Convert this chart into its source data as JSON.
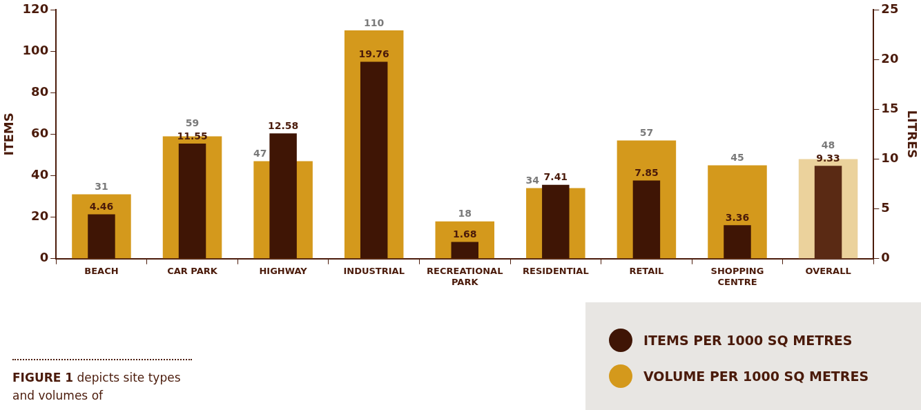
{
  "chart_data": {
    "type": "bar",
    "categories": [
      "BEACH",
      "CAR PARK",
      "HIGHWAY",
      "INDUSTRIAL",
      "RECREATIONAL PARK",
      "RESIDENTIAL",
      "RETAIL",
      "SHOPPING CENTRE",
      "OVERALL"
    ],
    "ylabel": "ITEMS",
    "y2label": "LITRES",
    "ylim": [
      0,
      120
    ],
    "yticks": [
      0,
      20,
      40,
      60,
      80,
      100,
      120
    ],
    "y2lim": [
      0,
      25
    ],
    "y2ticks": [
      0,
      5,
      10,
      15,
      20,
      25
    ],
    "series": [
      {
        "name": "ITEMS PER 1000 SQ METRES",
        "color": "#3f1505",
        "colors": [
          "#3f1505",
          "#3f1505",
          "#3f1505",
          "#3f1505",
          "#3f1505",
          "#3f1505",
          "#3f1505",
          "#3f1505",
          "#5a2a14"
        ],
        "axis": "y2",
        "values": [
          4.46,
          11.55,
          12.58,
          19.76,
          1.68,
          7.41,
          7.85,
          3.36,
          9.33
        ]
      },
      {
        "name": "VOLUME PER 1000 SQ METRES",
        "color": "#d4991c",
        "colors": [
          "#d4991c",
          "#d4991c",
          "#d4991c",
          "#d4991c",
          "#d4991c",
          "#d4991c",
          "#d4991c",
          "#d4991c",
          "#ebd29c"
        ],
        "values": [
          31,
          59,
          47,
          110,
          18,
          34,
          57,
          45,
          48
        ]
      }
    ],
    "data_labels": true,
    "grid": false,
    "legend": "bottom right",
    "annotations": [
      "FIGURE 1 depicts site types and volumes of"
    ]
  }
}
